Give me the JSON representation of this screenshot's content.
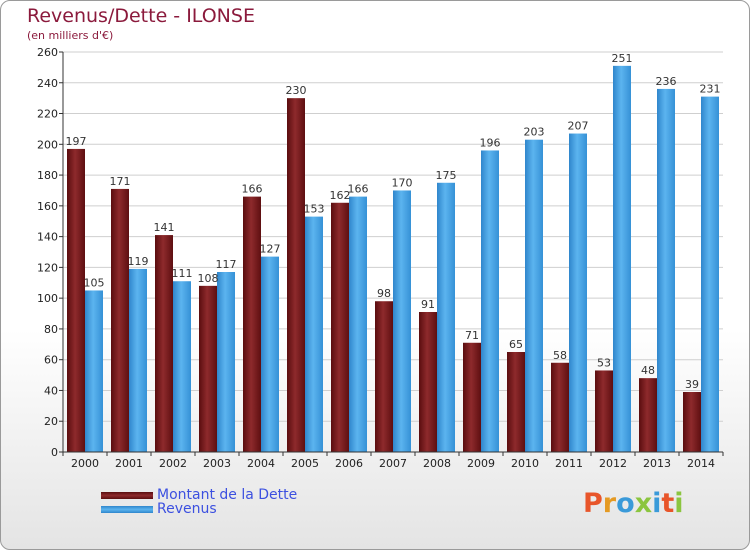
{
  "title": "Revenus/Dette - ILONSE",
  "subtitle": "(en milliers d'€)",
  "logo": {
    "text": "Proxiti",
    "letter_colors": [
      "#e8552a",
      "#e59a23",
      "#3a9ad9",
      "#8bc53f",
      "#3a9ad9",
      "#e8552a",
      "#8bc53f"
    ]
  },
  "chart_data": {
    "type": "bar",
    "categories": [
      "2000",
      "2001",
      "2002",
      "2003",
      "2004",
      "2005",
      "2006",
      "2007",
      "2008",
      "2009",
      "2010",
      "2011",
      "2012",
      "2013",
      "2014"
    ],
    "series": [
      {
        "name": "Montant de la Dette",
        "color": "#7a1517",
        "values": [
          197,
          171,
          141,
          108,
          166,
          230,
          162,
          98,
          91,
          71,
          65,
          58,
          53,
          48,
          39
        ]
      },
      {
        "name": "Revenus",
        "color": "#4ea6e6",
        "values": [
          105,
          119,
          111,
          117,
          127,
          153,
          166,
          170,
          175,
          196,
          203,
          207,
          251,
          236,
          231
        ]
      }
    ],
    "ylim": [
      0,
      260
    ],
    "yticks": [
      0,
      20,
      40,
      60,
      80,
      100,
      120,
      140,
      160,
      180,
      200,
      220,
      240,
      260
    ],
    "grid": true,
    "legend": "bottom-left"
  }
}
